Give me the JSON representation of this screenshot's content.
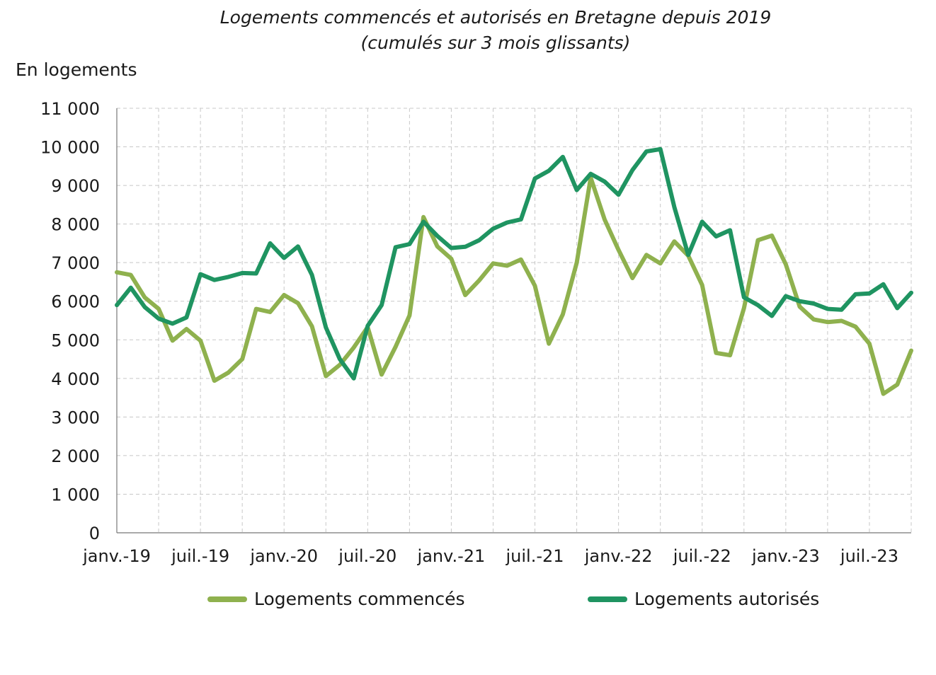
{
  "chart_data": {
    "type": "line",
    "title": "Logements commencés et autorisés en Bretagne depuis 2019",
    "subtitle": "(cumulés sur 3 mois glissants)",
    "ylabel": "En logements",
    "xlabel": "",
    "ylim": [
      0,
      11000
    ],
    "yticks": [
      0,
      1000,
      2000,
      3000,
      4000,
      5000,
      6000,
      7000,
      8000,
      9000,
      10000,
      11000
    ],
    "ytick_labels": [
      "0",
      "1 000",
      "2 000",
      "3 000",
      "4 000",
      "5 000",
      "6 000",
      "7 000",
      "8 000",
      "9 000",
      "10 000",
      "11 000"
    ],
    "xtick_labels": [
      "janv.-19",
      "juil.-19",
      "janv.-20",
      "juil.-20",
      "janv.-21",
      "juil.-21",
      "janv.-22",
      "juil.-22",
      "janv.-23",
      "juil.-23"
    ],
    "xtick_months": [
      "2019-01",
      "2019-07",
      "2020-01",
      "2020-07",
      "2021-01",
      "2021-07",
      "2022-01",
      "2022-07",
      "2023-01",
      "2023-07"
    ],
    "x": [
      "2019-01",
      "2019-02",
      "2019-03",
      "2019-04",
      "2019-05",
      "2019-06",
      "2019-07",
      "2019-08",
      "2019-09",
      "2019-10",
      "2019-11",
      "2019-12",
      "2020-01",
      "2020-02",
      "2020-03",
      "2020-04",
      "2020-05",
      "2020-06",
      "2020-07",
      "2020-08",
      "2020-09",
      "2020-10",
      "2020-11",
      "2020-12",
      "2021-01",
      "2021-02",
      "2021-03",
      "2021-04",
      "2021-05",
      "2021-06",
      "2021-07",
      "2021-08",
      "2021-09",
      "2021-10",
      "2021-11",
      "2021-12",
      "2022-01",
      "2022-02",
      "2022-03",
      "2022-04",
      "2022-05",
      "2022-06",
      "2022-07",
      "2022-08",
      "2022-09",
      "2022-10",
      "2022-11",
      "2022-12",
      "2023-01",
      "2023-02",
      "2023-03",
      "2023-04",
      "2023-05",
      "2023-06",
      "2023-07",
      "2023-08",
      "2023-09",
      "2023-10"
    ],
    "grid": true,
    "legend_position": "bottom",
    "series": [
      {
        "name": "Logements commencés",
        "color": "#8fb14e",
        "values": [
          6750,
          6680,
          6100,
          5800,
          4980,
          5280,
          4980,
          3940,
          4150,
          4500,
          5800,
          5720,
          6160,
          5950,
          5350,
          4060,
          4350,
          4800,
          5330,
          4100,
          4820,
          5630,
          8180,
          7420,
          7100,
          6160,
          6540,
          6980,
          6920,
          7080,
          6400,
          4900,
          5660,
          7000,
          9200,
          8120,
          7330,
          6600,
          7200,
          6980,
          7550,
          7180,
          6420,
          4660,
          4600,
          5820,
          7580,
          7700,
          6960,
          5860,
          5530,
          5460,
          5490,
          5340,
          4900,
          3600,
          3840,
          4720
        ]
      },
      {
        "name": "Logements autorisés",
        "color": "#1f9461",
        "values": [
          5900,
          6350,
          5850,
          5550,
          5420,
          5580,
          6700,
          6550,
          6630,
          6730,
          6720,
          7500,
          7120,
          7420,
          6680,
          5320,
          4500,
          4000,
          5360,
          5900,
          7400,
          7480,
          8060,
          7690,
          7380,
          7410,
          7580,
          7880,
          8040,
          8120,
          9180,
          9380,
          9740,
          8880,
          9300,
          9100,
          8760,
          9400,
          9880,
          9940,
          8440,
          7200,
          8060,
          7680,
          7840,
          6100,
          5900,
          5620,
          6130,
          6000,
          5940,
          5800,
          5780,
          6180,
          6200,
          6440,
          5820,
          6220
        ]
      }
    ]
  }
}
